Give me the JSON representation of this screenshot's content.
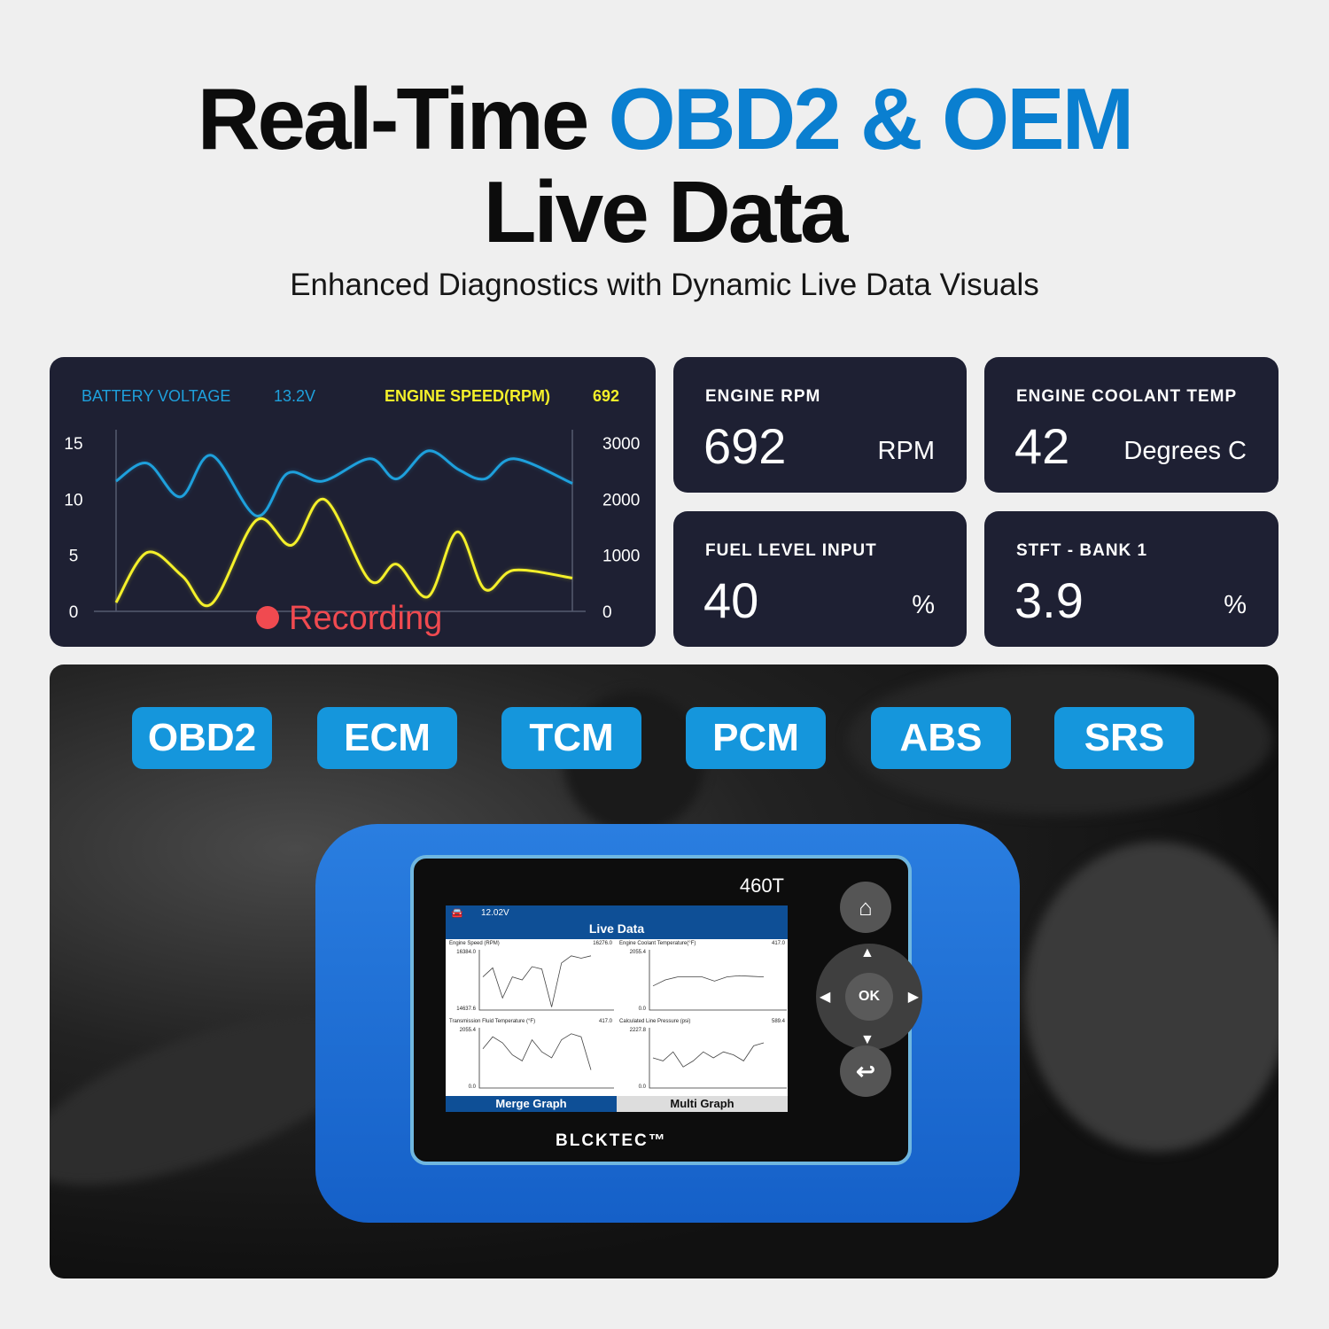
{
  "header": {
    "title_part1": "Real-Time ",
    "title_accent": "OBD2 & OEM",
    "title_line2": "Live Data",
    "subtitle": "Enhanced Diagnostics with Dynamic Live Data Visuals"
  },
  "colors": {
    "accent": "#0a7fd0",
    "panel": "#1e2033",
    "battery_line": "#1ea0dc",
    "rpm_line": "#f4f02a",
    "recording": "#f04a50",
    "pill": "#1596dc"
  },
  "chart_data": {
    "type": "line",
    "series": [
      {
        "name": "BATTERY VOLTAGE",
        "current": "13.2V",
        "axis": "left",
        "x": [
          0,
          6.8,
          14.1,
          20.9,
          30.8,
          37.6,
          45.3,
          55.6,
          61.5,
          68.4,
          75.2,
          80.8,
          87.2,
          100
        ],
        "values": [
          11.6,
          13.2,
          10.2,
          13.9,
          8.5,
          12.3,
          11.6,
          13.6,
          11.8,
          14.3,
          12.6,
          11.8,
          13.6,
          11.4
        ]
      },
      {
        "name": "ENGINE SPEED(RPM)",
        "current": "692",
        "axis": "right",
        "x": [
          0,
          6.8,
          14.5,
          20.9,
          30.8,
          38.5,
          45.7,
          55.6,
          61.5,
          68.4,
          74.8,
          80.8,
          87.2,
          100
        ],
        "values": [
          157,
          1049,
          629,
          131,
          1626,
          1180,
          1993,
          551,
          839,
          262,
          1416,
          393,
          734,
          593
        ]
      }
    ],
    "y_left": {
      "range": [
        0,
        15
      ],
      "ticks": [
        "15",
        "10",
        "5",
        "0"
      ]
    },
    "y_right": {
      "range": [
        0,
        3000
      ],
      "ticks": [
        "3000",
        "2000",
        "1000",
        "0"
      ]
    },
    "xlim": [
      0,
      100
    ],
    "grid": false,
    "status": "Recording"
  },
  "tiles": [
    {
      "label": "ENGINE RPM",
      "value": "692",
      "unit": "RPM"
    },
    {
      "label": "ENGINE COOLANT TEMP",
      "value": "42",
      "unit": "Degrees C"
    },
    {
      "label": "FUEL LEVEL INPUT",
      "value": "40",
      "unit": "%"
    },
    {
      "label": "STFT - BANK 1",
      "value": "3.9",
      "unit": "%"
    }
  ],
  "modules": [
    "OBD2",
    "ECM",
    "TCM",
    "PCM",
    "ABS",
    "SRS"
  ],
  "device": {
    "model": "460T",
    "brand": "BLCKTEC™",
    "voltage": "12.02V",
    "screen_title": "Live Data",
    "graphs": [
      {
        "name": "Engine Speed (RPM)",
        "max": "16384.0",
        "min": "14637.6",
        "current": "16276.0"
      },
      {
        "name": "Engine Coolant Temperature(°F)",
        "max": "2055.4",
        "min": "0.0",
        "current": "417.0"
      },
      {
        "name": "Transmission Fluid Temperature (°F)",
        "max": "2055.4",
        "min": "0.0",
        "current": "417.0"
      },
      {
        "name": "Calculated Line Pressure (psi)",
        "max": "2227.8",
        "min": "0.0",
        "current": "589.4"
      }
    ],
    "tabs": [
      "Merge Graph",
      "Multi Graph"
    ],
    "ok_label": "OK"
  }
}
